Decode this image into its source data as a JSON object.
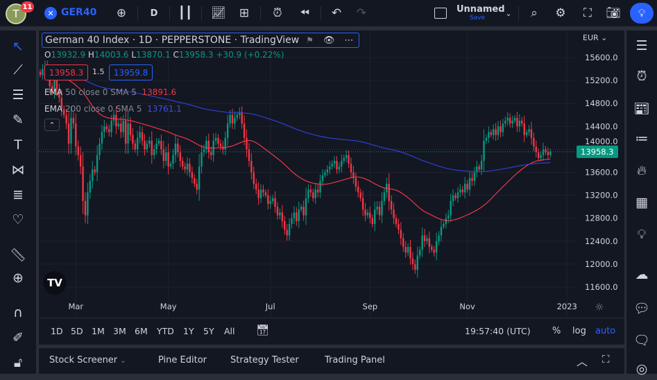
{
  "topbar": {
    "avatar_letter": "T",
    "notifications": "11",
    "symbol": "GER40",
    "interval": "D",
    "layout_name": "Unnamed",
    "layout_save": "Save",
    "icons": [
      "plus-circle-icon",
      "candles-icon",
      "indicators-icon",
      "templates-icon",
      "alert-icon",
      "replay-icon",
      "undo-icon",
      "redo-icon",
      "layout-icon",
      "search-icon",
      "gear-icon",
      "fullscreen-icon",
      "camera-icon",
      "publish-icon"
    ]
  },
  "legend": {
    "title": "German 40 Index · 1D · PEPPERSTONE · TradingView",
    "o_label": "O",
    "o": "13932.9",
    "h_label": "H",
    "h": "14003.6",
    "l_label": "L",
    "l": "13870.1",
    "c_label": "C",
    "c": "13958.3",
    "change": "+30.9 (+0.22%)",
    "bid": "13958.3",
    "spread": "1.5",
    "ask": "13959.8",
    "ema50_label": "EMA",
    "ema50_params": "50 close 0 SMA 5",
    "ema50_value": "13891.6",
    "ema200_label": "EMA",
    "ema200_params": "200 close 0 SMA 5",
    "ema200_value": "13761.1"
  },
  "colors": {
    "up": "#089981",
    "down": "#f23645",
    "ema50": "#f23645",
    "ema200": "#2f3fd0",
    "accent": "#2962ff",
    "bg": "#131722"
  },
  "chart_data": {
    "type": "candlestick",
    "currency": "EUR",
    "ylim": [
      11400,
      15800
    ],
    "y_ticks": [
      "15600.0",
      "15200.0",
      "14800.0",
      "14400.0",
      "14000.0",
      "13600.0",
      "13200.0",
      "12800.0",
      "12400.0",
      "12000.0",
      "11600.0"
    ],
    "x_ticks": [
      {
        "label": "Mar",
        "index": 15
      },
      {
        "label": "May",
        "index": 54
      },
      {
        "label": "Jul",
        "index": 97
      },
      {
        "label": "Sep",
        "index": 139
      },
      {
        "label": "Nov",
        "index": 180
      },
      {
        "label": "2023",
        "index": 222
      }
    ],
    "last_price": "13958.3",
    "series": [
      {
        "name": "EMA 50",
        "period": 50
      },
      {
        "name": "EMA 200",
        "period": 200
      }
    ],
    "closes": [
      15300,
      15400,
      15450,
      15300,
      15100,
      15000,
      15200,
      15050,
      14900,
      14700,
      14600,
      14450,
      14100,
      14550,
      14450,
      14050,
      13900,
      13700,
      13100,
      12850,
      13250,
      13450,
      13650,
      13600,
      13900,
      14100,
      14300,
      14400,
      14350,
      14300,
      14500,
      14600,
      14400,
      14450,
      14300,
      14500,
      14100,
      14450,
      14250,
      14100,
      14000,
      14200,
      14300,
      14150,
      14000,
      14100,
      14150,
      13900,
      14000,
      14100,
      14150,
      14000,
      13800,
      13950,
      13700,
      13750,
      13900,
      14100,
      13950,
      13800,
      13700,
      13650,
      13750,
      13600,
      13500,
      13400,
      13300,
      13700,
      13950,
      14000,
      14150,
      13950,
      13900,
      14150,
      14200,
      14100,
      14050,
      14000,
      14200,
      14450,
      14600,
      14450,
      14550,
      14600,
      14650,
      14450,
      14200,
      14000,
      13800,
      13600,
      13400,
      13300,
      13150,
      13300,
      13250,
      13200,
      13050,
      13100,
      13150,
      13000,
      12850,
      12900,
      12750,
      12600,
      12500,
      12700,
      12800,
      12900,
      12750,
      12950,
      13000,
      12850,
      13150,
      13300,
      13250,
      13150,
      13300,
      13250,
      13450,
      13550,
      13600,
      13650,
      13700,
      13750,
      13800,
      13650,
      13700,
      13800,
      13850,
      13900,
      13750,
      13600,
      13500,
      13350,
      13250,
      13150,
      12950,
      12850,
      12900,
      12800,
      12700,
      12950,
      13000,
      12850,
      13100,
      13250,
      13400,
      13100,
      12950,
      12800,
      12700,
      12600,
      12450,
      12300,
      12200,
      12300,
      12100,
      12000,
      11900,
      12150,
      12250,
      12500,
      12400,
      12450,
      12300,
      12250,
      12200,
      12400,
      12500,
      12650,
      12700,
      12800,
      12850,
      13100,
      13200,
      13150,
      13250,
      13300,
      13250,
      13400,
      13300,
      13500,
      13450,
      13600,
      13700,
      13650,
      13800,
      14150,
      14200,
      14300,
      14250,
      14350,
      14250,
      14400,
      14300,
      14450,
      14500,
      14550,
      14450,
      14500,
      14550,
      14400,
      14500,
      14450,
      14250,
      14300,
      14350,
      14200,
      14050,
      13950,
      13850,
      13900,
      14000,
      13950,
      13900,
      13958.3
    ]
  },
  "range_bar": {
    "ranges": [
      "1D",
      "5D",
      "1M",
      "3M",
      "6M",
      "YTD",
      "1Y",
      "5Y",
      "All"
    ],
    "time": "19:57:40 (UTC)",
    "percent": "%",
    "log": "log",
    "auto": "auto"
  },
  "bottom": {
    "tabs": [
      "Stock Screener",
      "Pine Editor",
      "Strategy Tester",
      "Trading Panel"
    ]
  }
}
